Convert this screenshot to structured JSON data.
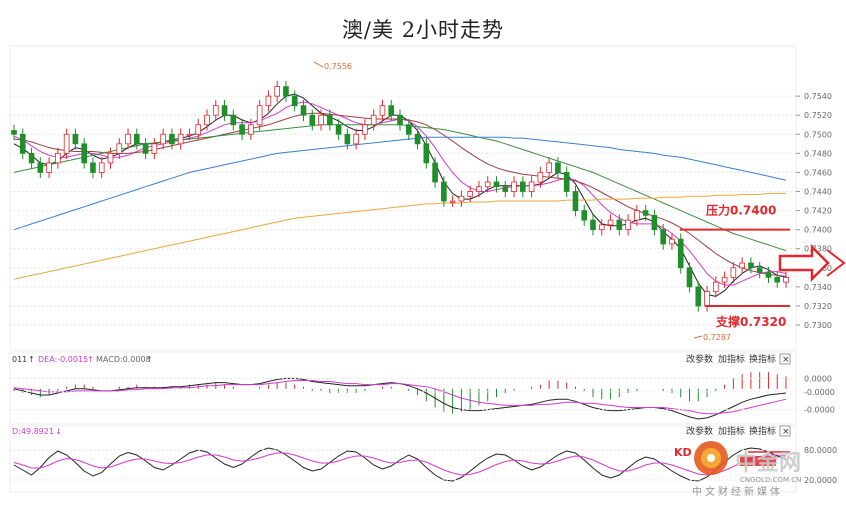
{
  "title": "澳/美 2小时走势",
  "chart_data": [
    {
      "type": "candlestick",
      "name": "price",
      "y_ticks": [
        "0.7540",
        "0.7520",
        "0.7500",
        "0.7480",
        "0.7460",
        "0.7440",
        "0.7420",
        "0.7400",
        "0.7380",
        "0.7360",
        "0.7340",
        "0.7320",
        "0.7300"
      ],
      "ylim": [
        0.7278,
        0.758
      ],
      "high_label": "0.7556",
      "low_label": "0.7287",
      "resistance": {
        "label": "压力0.7400",
        "value": 0.74
      },
      "support": {
        "label": "支撑0.7320",
        "value": 0.732
      },
      "close": [
        0.75,
        0.748,
        0.747,
        0.746,
        0.747,
        0.748,
        0.75,
        0.749,
        0.747,
        0.746,
        0.747,
        0.748,
        0.749,
        0.75,
        0.749,
        0.748,
        0.749,
        0.75,
        0.749,
        0.75,
        0.75,
        0.751,
        0.752,
        0.753,
        0.752,
        0.751,
        0.75,
        0.751,
        0.753,
        0.754,
        0.755,
        0.754,
        0.753,
        0.752,
        0.751,
        0.752,
        0.751,
        0.75,
        0.749,
        0.75,
        0.751,
        0.752,
        0.753,
        0.752,
        0.751,
        0.75,
        0.749,
        0.747,
        0.745,
        0.743,
        0.743,
        0.7435,
        0.744,
        0.7445,
        0.745,
        0.7445,
        0.744,
        0.745,
        0.744,
        0.745,
        0.746,
        0.747,
        0.746,
        0.744,
        0.742,
        0.741,
        0.74,
        0.7405,
        0.741,
        0.74,
        0.741,
        0.742,
        0.7415,
        0.74,
        0.7385,
        0.739,
        0.736,
        0.734,
        0.732,
        0.7335,
        0.7345,
        0.735,
        0.736,
        0.7365,
        0.736,
        0.7355,
        0.735,
        0.7345,
        0.735
      ],
      "ma_series": [
        {
          "color": "#222222",
          "values": [
            0.749,
            0.7485,
            0.7478,
            0.747,
            0.7468,
            0.7472,
            0.748,
            0.7486,
            0.7484,
            0.7478,
            0.7474,
            0.7476,
            0.748,
            0.7486,
            0.749,
            0.749,
            0.749,
            0.7492,
            0.7494,
            0.7496,
            0.7498,
            0.7502,
            0.7508,
            0.7515,
            0.752,
            0.752,
            0.7515,
            0.7512,
            0.7515,
            0.7522,
            0.7532,
            0.754,
            0.7542,
            0.7538,
            0.753,
            0.7522,
            0.7518,
            0.7514,
            0.7508,
            0.7504,
            0.7504,
            0.7508,
            0.7514,
            0.752,
            0.752,
            0.7514,
            0.7504,
            0.7488,
            0.747,
            0.745,
            0.7438,
            0.7432,
            0.7432,
            0.7436,
            0.7442,
            0.7446,
            0.7446,
            0.7446,
            0.7446,
            0.7446,
            0.7448,
            0.7454,
            0.746,
            0.7458,
            0.7448,
            0.7432,
            0.7416,
            0.7406,
            0.7404,
            0.7404,
            0.7406,
            0.741,
            0.7412,
            0.7408,
            0.7398,
            0.739,
            0.738,
            0.7362,
            0.7344,
            0.7332,
            0.733,
            0.7336,
            0.7346,
            0.7354,
            0.736,
            0.7362,
            0.7358,
            0.7352,
            0.735
          ]
        },
        {
          "color": "#d23ad2",
          "values": [
            0.7498,
            0.7494,
            0.7488,
            0.7482,
            0.7478,
            0.7476,
            0.7476,
            0.7478,
            0.748,
            0.748,
            0.7478,
            0.7476,
            0.7476,
            0.7478,
            0.7482,
            0.7486,
            0.7488,
            0.749,
            0.7492,
            0.7494,
            0.7496,
            0.7498,
            0.7502,
            0.7506,
            0.751,
            0.7512,
            0.7512,
            0.7512,
            0.7514,
            0.7518,
            0.7522,
            0.7528,
            0.7532,
            0.7534,
            0.7532,
            0.7528,
            0.7524,
            0.752,
            0.7516,
            0.7512,
            0.751,
            0.751,
            0.7512,
            0.7514,
            0.7516,
            0.7514,
            0.7508,
            0.7498,
            0.7486,
            0.7472,
            0.746,
            0.745,
            0.7444,
            0.744,
            0.744,
            0.7442,
            0.7444,
            0.7445,
            0.7446,
            0.7446,
            0.7447,
            0.7449,
            0.7452,
            0.7454,
            0.7452,
            0.7446,
            0.7436,
            0.7426,
            0.7418,
            0.7412,
            0.7408,
            0.7406,
            0.7406,
            0.7406,
            0.7402,
            0.7396,
            0.7388,
            0.7378,
            0.7366,
            0.7354,
            0.7346,
            0.7342,
            0.7342,
            0.7346,
            0.735,
            0.7354,
            0.7356,
            0.7356,
            0.7354
          ]
        },
        {
          "color": "#9e3f3f",
          "values": [
            0.7495,
            0.7494,
            0.7492,
            0.7489,
            0.7486,
            0.7484,
            0.7483,
            0.7482,
            0.7482,
            0.7482,
            0.7481,
            0.748,
            0.748,
            0.748,
            0.7481,
            0.7482,
            0.7484,
            0.7486,
            0.7488,
            0.749,
            0.7492,
            0.7494,
            0.7496,
            0.7498,
            0.75,
            0.7502,
            0.7504,
            0.7506,
            0.7508,
            0.751,
            0.7513,
            0.7516,
            0.7519,
            0.7521,
            0.7522,
            0.7522,
            0.7521,
            0.752,
            0.7519,
            0.7518,
            0.7517,
            0.7516,
            0.7516,
            0.7516,
            0.7516,
            0.7515,
            0.7513,
            0.751,
            0.7505,
            0.7499,
            0.7493,
            0.7486,
            0.748,
            0.7474,
            0.7469,
            0.7465,
            0.7462,
            0.746,
            0.7458,
            0.7457,
            0.7456,
            0.7455,
            0.7454,
            0.7453,
            0.7451,
            0.7448,
            0.7444,
            0.7439,
            0.7434,
            0.7429,
            0.7424,
            0.742,
            0.7417,
            0.7414,
            0.7411,
            0.7407,
            0.7402,
            0.7396,
            0.7389,
            0.7382,
            0.7375,
            0.7369,
            0.7364,
            0.736,
            0.7357,
            0.7355,
            0.7353,
            0.7352,
            0.7351
          ]
        },
        {
          "color": "#3a8f3a",
          "values": [
            0.746,
            0.7462,
            0.7464,
            0.7466,
            0.7468,
            0.747,
            0.7472,
            0.7474,
            0.7476,
            0.7478,
            0.748,
            0.7482,
            0.7484,
            0.7486,
            0.7488,
            0.749,
            0.7491,
            0.7492,
            0.7493,
            0.7494,
            0.7495,
            0.7496,
            0.7497,
            0.7498,
            0.7499,
            0.75,
            0.7501,
            0.7502,
            0.7503,
            0.7504,
            0.7505,
            0.7506,
            0.7507,
            0.7508,
            0.7509,
            0.751,
            0.751,
            0.751,
            0.751,
            0.751,
            0.751,
            0.751,
            0.751,
            0.751,
            0.751,
            0.7509,
            0.7508,
            0.7507,
            0.7506,
            0.7505,
            0.7503,
            0.7501,
            0.7499,
            0.7497,
            0.7495,
            0.7493,
            0.749,
            0.7487,
            0.7484,
            0.7481,
            0.7478,
            0.7475,
            0.7472,
            0.7469,
            0.7466,
            0.7463,
            0.746,
            0.7456,
            0.7452,
            0.7448,
            0.7444,
            0.744,
            0.7436,
            0.7432,
            0.7428,
            0.7424,
            0.742,
            0.7416,
            0.7412,
            0.7408,
            0.7404,
            0.74,
            0.7396,
            0.7393,
            0.739,
            0.7387,
            0.7384,
            0.7381,
            0.7378
          ]
        },
        {
          "color": "#3b7fd0",
          "values": [
            0.74,
            0.7403,
            0.7406,
            0.7409,
            0.7412,
            0.7415,
            0.7418,
            0.7421,
            0.7424,
            0.7427,
            0.743,
            0.7433,
            0.7436,
            0.7439,
            0.7442,
            0.7445,
            0.7448,
            0.7451,
            0.7454,
            0.7457,
            0.746,
            0.7462,
            0.7464,
            0.7466,
            0.7468,
            0.747,
            0.7472,
            0.7474,
            0.7476,
            0.7478,
            0.748,
            0.7481,
            0.7482,
            0.7483,
            0.7484,
            0.7485,
            0.7486,
            0.7487,
            0.7488,
            0.7489,
            0.749,
            0.7491,
            0.7492,
            0.7493,
            0.7494,
            0.7495,
            0.7496,
            0.7497,
            0.7497,
            0.7497,
            0.7497,
            0.7497,
            0.7497,
            0.7497,
            0.7497,
            0.7497,
            0.7497,
            0.7496,
            0.7496,
            0.7495,
            0.7494,
            0.7493,
            0.7492,
            0.7491,
            0.749,
            0.7489,
            0.7488,
            0.7487,
            0.7486,
            0.7484,
            0.7483,
            0.7482,
            0.7481,
            0.748,
            0.7478,
            0.7477,
            0.7476,
            0.7474,
            0.7472,
            0.747,
            0.7468,
            0.7466,
            0.7464,
            0.7462,
            0.746,
            0.7458,
            0.7456,
            0.7454,
            0.7452
          ]
        },
        {
          "color": "#e8a93a",
          "values": [
            0.7348,
            0.735,
            0.7352,
            0.7354,
            0.7356,
            0.7358,
            0.736,
            0.7362,
            0.7364,
            0.7366,
            0.7368,
            0.737,
            0.7372,
            0.7374,
            0.7376,
            0.7378,
            0.738,
            0.7382,
            0.7384,
            0.7386,
            0.7388,
            0.739,
            0.7392,
            0.7394,
            0.7396,
            0.7398,
            0.74,
            0.7402,
            0.7404,
            0.7406,
            0.7408,
            0.741,
            0.7412,
            0.7413,
            0.7414,
            0.7415,
            0.7416,
            0.7417,
            0.7418,
            0.7419,
            0.742,
            0.7421,
            0.7422,
            0.7423,
            0.7424,
            0.7425,
            0.7426,
            0.7427,
            0.7427,
            0.7428,
            0.7428,
            0.7428,
            0.7429,
            0.7429,
            0.7429,
            0.743,
            0.743,
            0.743,
            0.743,
            0.743,
            0.743,
            0.743,
            0.743,
            0.7431,
            0.7431,
            0.7431,
            0.7431,
            0.7432,
            0.7432,
            0.7432,
            0.7432,
            0.7433,
            0.7433,
            0.7433,
            0.7434,
            0.7434,
            0.7434,
            0.7435,
            0.7435,
            0.7435,
            0.7436,
            0.7436,
            0.7436,
            0.7437,
            0.7437,
            0.7437,
            0.7438,
            0.7438,
            0.7438
          ]
        }
      ]
    },
    {
      "type": "macd",
      "name": "macd",
      "header": {
        "dif_prefix": "011",
        "dea": "DEA:-0.0015",
        "macd": "MACD:0.0008"
      },
      "y_ticks": [
        "0.0000",
        "-0.0000",
        "-0.0000"
      ],
      "ylim": [
        -0.003,
        0.002
      ],
      "dif": [
        0.0,
        -0.0002,
        -0.0004,
        -0.0006,
        -0.0006,
        -0.0004,
        -0.0002,
        0.0,
        0.0,
        -0.0001,
        -0.0002,
        -0.0002,
        -0.0001,
        0.0,
        0.0001,
        0.0001,
        0.0001,
        0.0001,
        0.0002,
        0.0002,
        0.0003,
        0.0004,
        0.0005,
        0.0006,
        0.0006,
        0.0005,
        0.0004,
        0.0004,
        0.0005,
        0.0007,
        0.0009,
        0.001,
        0.001,
        0.0009,
        0.0007,
        0.0006,
        0.0005,
        0.0004,
        0.0003,
        0.0003,
        0.0003,
        0.0004,
        0.0005,
        0.0006,
        0.0005,
        0.0003,
        0.0,
        -0.0004,
        -0.0009,
        -0.0014,
        -0.0018,
        -0.002,
        -0.0021,
        -0.0021,
        -0.002,
        -0.0019,
        -0.0018,
        -0.0017,
        -0.0016,
        -0.0015,
        -0.0013,
        -0.0011,
        -0.001,
        -0.001,
        -0.0012,
        -0.0015,
        -0.0018,
        -0.002,
        -0.0021,
        -0.0021,
        -0.002,
        -0.0019,
        -0.0018,
        -0.0018,
        -0.0019,
        -0.0021,
        -0.0024,
        -0.0027,
        -0.0029,
        -0.0028,
        -0.0025,
        -0.0021,
        -0.0017,
        -0.0013,
        -0.001,
        -0.0008,
        -0.0006,
        -0.0005,
        -0.0004
      ],
      "dea": [
        0.0001,
        0.0,
        -0.0001,
        -0.0002,
        -0.0003,
        -0.0003,
        -0.0003,
        -0.0002,
        -0.0002,
        -0.0002,
        -0.0002,
        -0.0002,
        -0.0002,
        -0.0001,
        -0.0001,
        0.0,
        0.0,
        0.0,
        0.0001,
        0.0001,
        0.0001,
        0.0002,
        0.0003,
        0.0003,
        0.0004,
        0.0004,
        0.0004,
        0.0004,
        0.0004,
        0.0005,
        0.0006,
        0.0007,
        0.0008,
        0.0008,
        0.0008,
        0.0007,
        0.0007,
        0.0006,
        0.0005,
        0.0005,
        0.0004,
        0.0004,
        0.0004,
        0.0005,
        0.0005,
        0.0004,
        0.0003,
        0.0002,
        0.0,
        -0.0003,
        -0.0006,
        -0.0009,
        -0.0011,
        -0.0013,
        -0.0014,
        -0.0015,
        -0.0016,
        -0.0016,
        -0.0016,
        -0.0016,
        -0.0015,
        -0.0015,
        -0.0014,
        -0.0013,
        -0.0013,
        -0.0014,
        -0.0014,
        -0.0015,
        -0.0016,
        -0.0017,
        -0.0018,
        -0.0018,
        -0.0018,
        -0.0018,
        -0.0018,
        -0.0019,
        -0.002,
        -0.0021,
        -0.0023,
        -0.0024,
        -0.0024,
        -0.0023,
        -0.0022,
        -0.002,
        -0.0018,
        -0.0016,
        -0.0014,
        -0.0012,
        -0.001
      ]
    },
    {
      "type": "kdj",
      "name": "kdj",
      "header": "D:49.8921",
      "y_ticks": [
        "80.0000",
        "20.0000"
      ],
      "ylim": [
        0,
        100
      ],
      "k": [
        50,
        40,
        30,
        45,
        65,
        78,
        70,
        55,
        38,
        28,
        35,
        52,
        68,
        75,
        70,
        58,
        45,
        40,
        50,
        62,
        74,
        80,
        76,
        64,
        52,
        45,
        52,
        66,
        78,
        84,
        80,
        70,
        58,
        45,
        38,
        42,
        55,
        68,
        78,
        76,
        64,
        50,
        42,
        48,
        60,
        70,
        62,
        45,
        30,
        20,
        18,
        25,
        38,
        52,
        64,
        72,
        70,
        60,
        48,
        40,
        46,
        58,
        70,
        78,
        74,
        60,
        44,
        30,
        24,
        30,
        44,
        58,
        66,
        62,
        50,
        38,
        28,
        20,
        18,
        26,
        40,
        56,
        70,
        80,
        84,
        82,
        76,
        68,
        62
      ],
      "d": [
        55,
        50,
        44,
        44,
        50,
        58,
        63,
        61,
        55,
        48,
        44,
        46,
        52,
        58,
        62,
        62,
        58,
        54,
        53,
        55,
        60,
        66,
        70,
        70,
        66,
        60,
        58,
        60,
        64,
        70,
        74,
        74,
        70,
        64,
        58,
        54,
        54,
        58,
        64,
        68,
        68,
        64,
        58,
        54,
        55,
        59,
        60,
        56,
        48,
        40,
        34,
        30,
        31,
        36,
        43,
        51,
        57,
        60,
        58,
        54,
        52,
        53,
        58,
        64,
        68,
        66,
        60,
        52,
        44,
        38,
        38,
        43,
        50,
        54,
        54,
        50,
        44,
        38,
        32,
        30,
        33,
        39,
        47,
        55,
        62,
        67,
        70,
        70,
        68
      ]
    }
  ],
  "toolbar": {
    "change_params": "改参数",
    "add_indicator": "加指标",
    "swap_indicator": "换指标",
    "close": "×"
  },
  "kdj_overlay_label": "KD",
  "watermark": {
    "site": "CNGOLD.COM.CN",
    "brand": "中金网",
    "tagline": "中文财经新媒体"
  },
  "colors": {
    "up": "#e0282e",
    "down": "#1f8f2a",
    "grid": "#e6e6e6",
    "accent": "#e0282e"
  }
}
